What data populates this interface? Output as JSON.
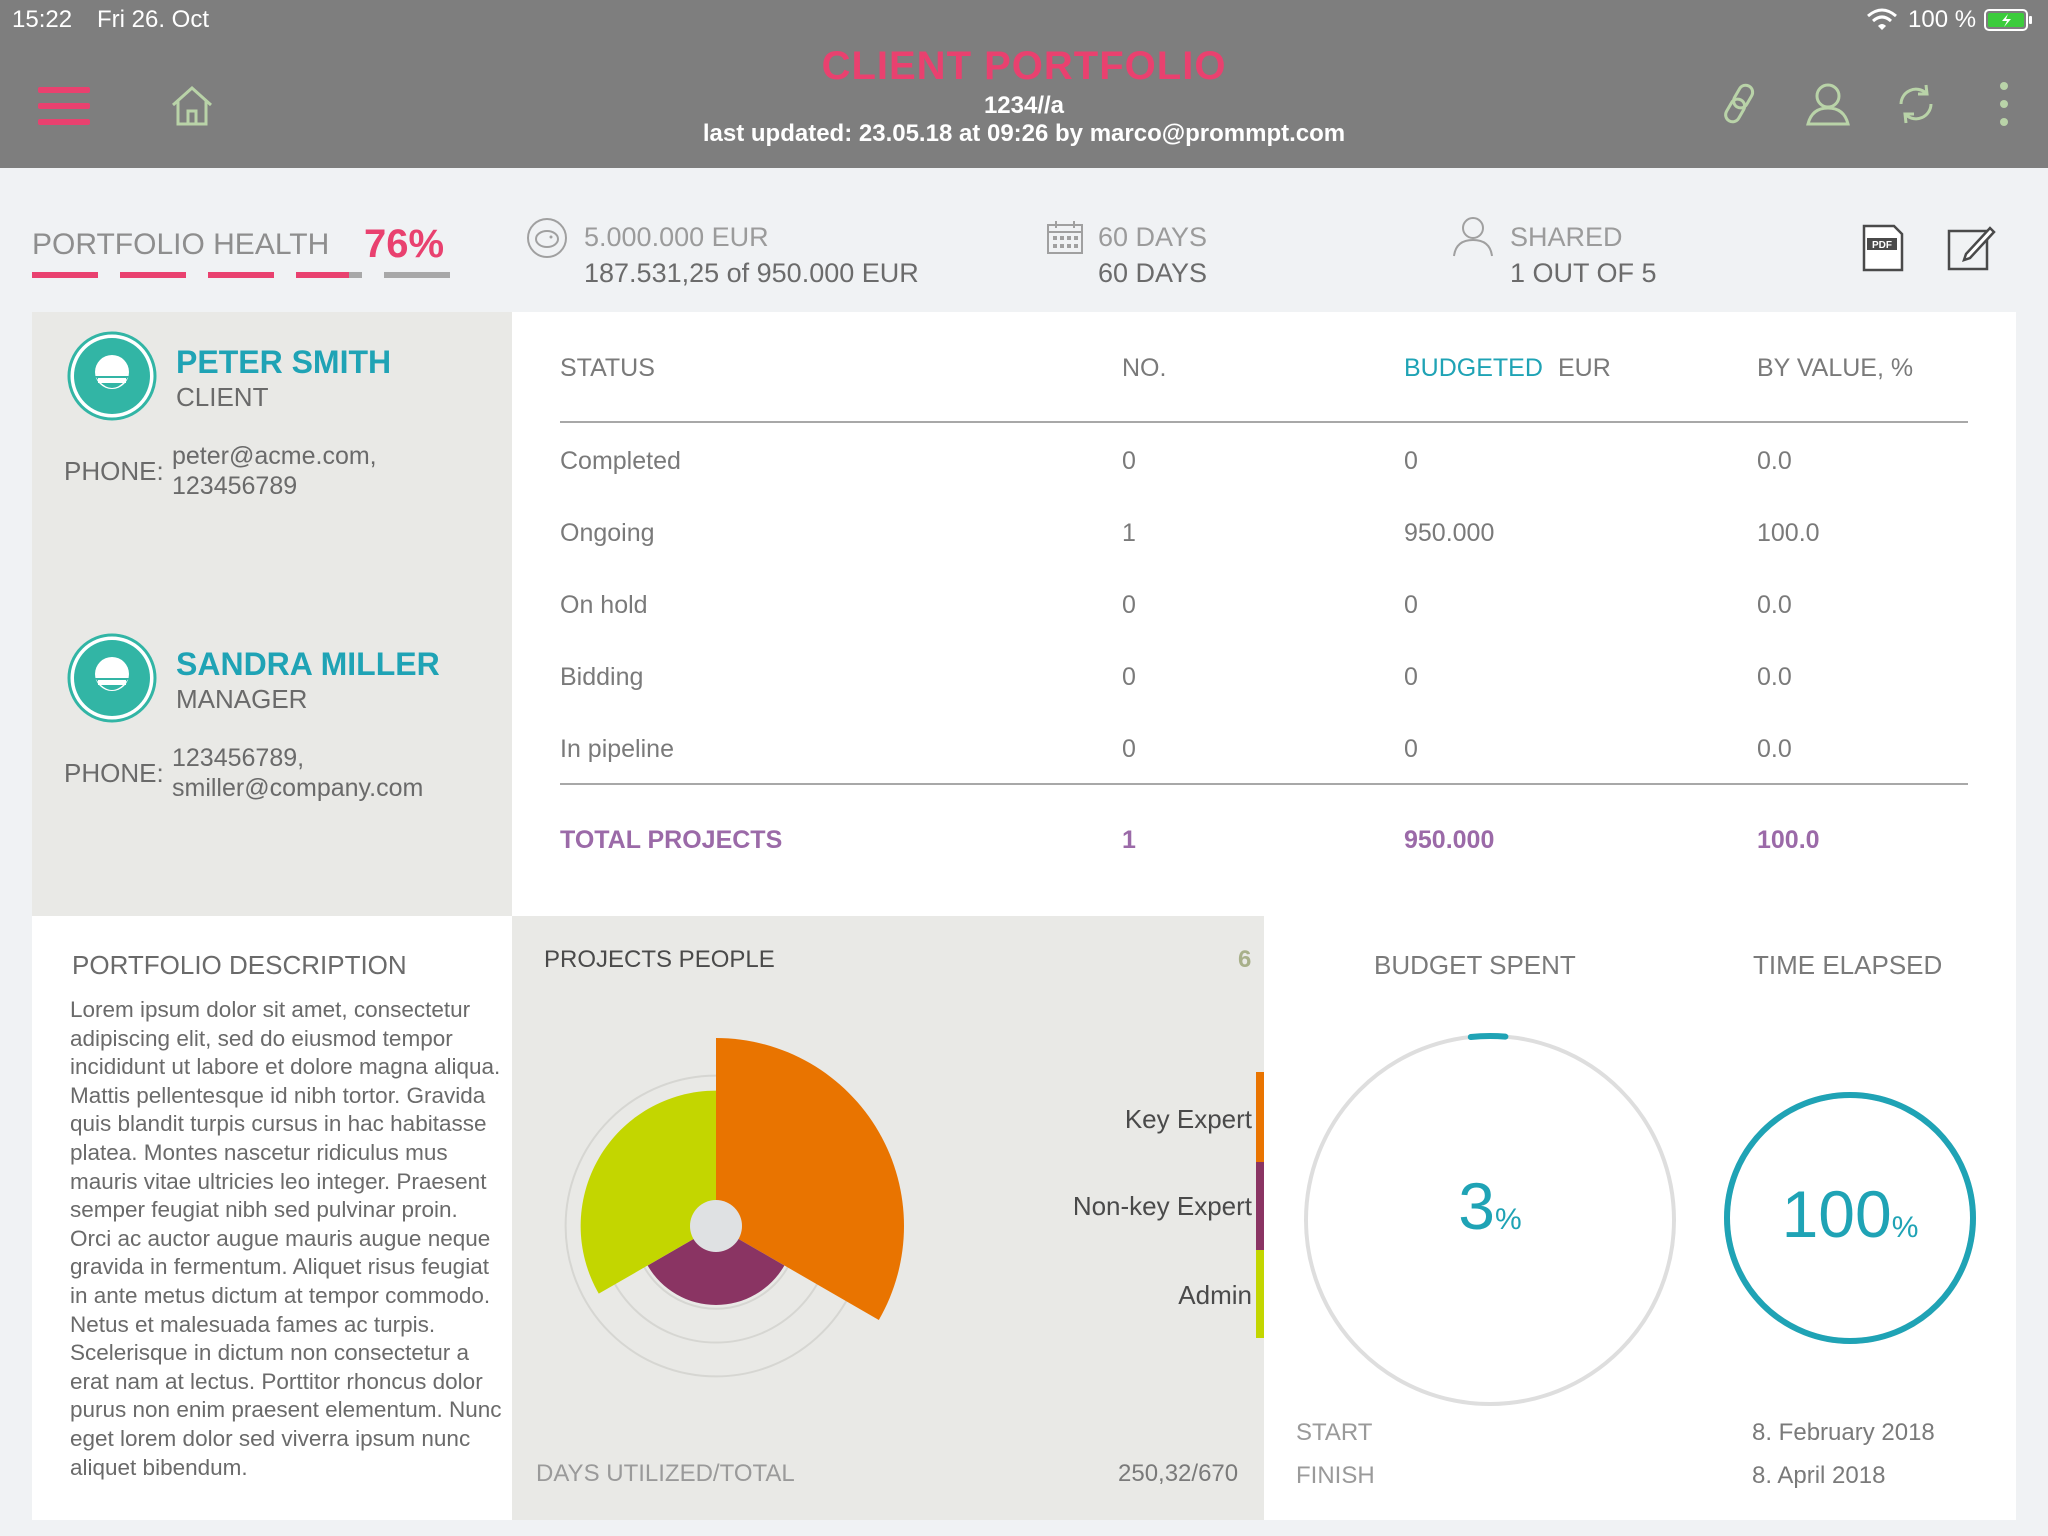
{
  "status_bar": {
    "time": "15:22",
    "date": "Fri 26. Oct",
    "battery": "100 %"
  },
  "header": {
    "title": "CLIENT PORTFOLIO",
    "code": "1234//a",
    "last_updated": "last updated: 23.05.18 at 09:26 by marco@prommpt.com",
    "icons": [
      "menu-icon",
      "home-icon",
      "link-icon",
      "user-icon",
      "sync-icon",
      "more-icon"
    ]
  },
  "kpis": {
    "health_label": "PORTFOLIO HEALTH",
    "health_value": "76%",
    "health_fraction": 0.76,
    "budget_label": "5.000.000 EUR",
    "budget_value": "187.531,25 of 950.000 EUR",
    "days_label": "60 DAYS",
    "days_value": "60 DAYS",
    "shared_label": "SHARED",
    "shared_value": "1 OUT OF 5"
  },
  "contacts": [
    {
      "name": "PETER SMITH",
      "role": "CLIENT",
      "phone_label": "PHONE:",
      "phone_line1": "peter@acme.com,",
      "phone_line2": "123456789"
    },
    {
      "name": "SANDRA MILLER",
      "role": "MANAGER",
      "phone_label": "PHONE:",
      "phone_line1": "123456789,",
      "phone_line2": "smiller@company.com"
    }
  ],
  "status_table": {
    "headers": {
      "status": "STATUS",
      "no": "NO.",
      "budgeted": "BUDGETED",
      "currency": "EUR",
      "by_value": "BY VALUE, %"
    },
    "rows": [
      {
        "status": "Completed",
        "no": "0",
        "budgeted": "0",
        "by_value": "0.0"
      },
      {
        "status": "Ongoing",
        "no": "1",
        "budgeted": "950.000",
        "by_value": "100.0"
      },
      {
        "status": "On hold",
        "no": "0",
        "budgeted": "0",
        "by_value": "0.0"
      },
      {
        "status": "Bidding",
        "no": "0",
        "budgeted": "0",
        "by_value": "0.0"
      },
      {
        "status": "In pipeline",
        "no": "0",
        "budgeted": "0",
        "by_value": "0.0"
      }
    ],
    "total": {
      "status": "TOTAL PROJECTS",
      "no": "1",
      "budgeted": "950.000",
      "by_value": "100.0"
    }
  },
  "description": {
    "title": "PORTFOLIO DESCRIPTION",
    "text": "Lorem ipsum dolor sit amet, consectetur adipiscing elit, sed do eiusmod tempor incididunt ut labore et dolore magna aliqua. Mattis pellentesque id nibh tortor. Gravida quis blandit turpis cursus in hac habitasse platea. Montes nascetur ridiculus mus mauris vitae ultricies leo integer. Praesent semper feugiat nibh sed pulvinar proin. Orci ac auctor augue mauris augue neque gravida in fermentum. Aliquet risus feugiat in ante metus dictum at tempor commodo. Netus et malesuada fames ac turpis. Scelerisque in dictum non consectetur a erat nam at lectus. Porttitor rhoncus dolor purus non enim praesent elementum. Nunc eget lorem dolor sed viverra ipsum nunc aliquet bibendum."
  },
  "projects_people": {
    "title": "PROJECTS PEOPLE",
    "count": "6",
    "days_label": "DAYS UTILIZED/TOTAL",
    "days_value": "250,32/670",
    "legend": [
      {
        "label": "Key Expert",
        "color": "#e97400"
      },
      {
        "label": "Non-key Expert",
        "color": "#8a3463"
      },
      {
        "label": "Admin",
        "color": "#c3d600"
      }
    ]
  },
  "chart_data": {
    "type": "pie",
    "title": "PROJECTS PEOPLE",
    "note": "polar area chart; slice radius varies by role",
    "series": [
      {
        "name": "Key Expert",
        "start_deg": 0,
        "end_deg": 120,
        "radius": 1.0,
        "color": "#e97400"
      },
      {
        "name": "Non-key Expert",
        "start_deg": 120,
        "end_deg": 240,
        "radius": 0.42,
        "color": "#8a3463"
      },
      {
        "name": "Admin",
        "start_deg": 240,
        "end_deg": 360,
        "radius": 0.72,
        "color": "#c3d600"
      }
    ]
  },
  "budget_spent": {
    "title": "BUDGET SPENT",
    "value": "3",
    "unit": "%",
    "fraction": 0.03
  },
  "time_elapsed": {
    "title": "TIME ELAPSED",
    "value": "100",
    "unit": "%",
    "fraction": 1.0
  },
  "dates": {
    "start_label": "START",
    "start_value": "8. February 2018",
    "finish_label": "FINISH",
    "finish_value": "8. April 2018"
  },
  "colors": {
    "accent_pink": "#e9416f",
    "teal": "#1fa3b5",
    "purple_total": "#9b6aa8",
    "header_gray": "#7e7e7e"
  }
}
